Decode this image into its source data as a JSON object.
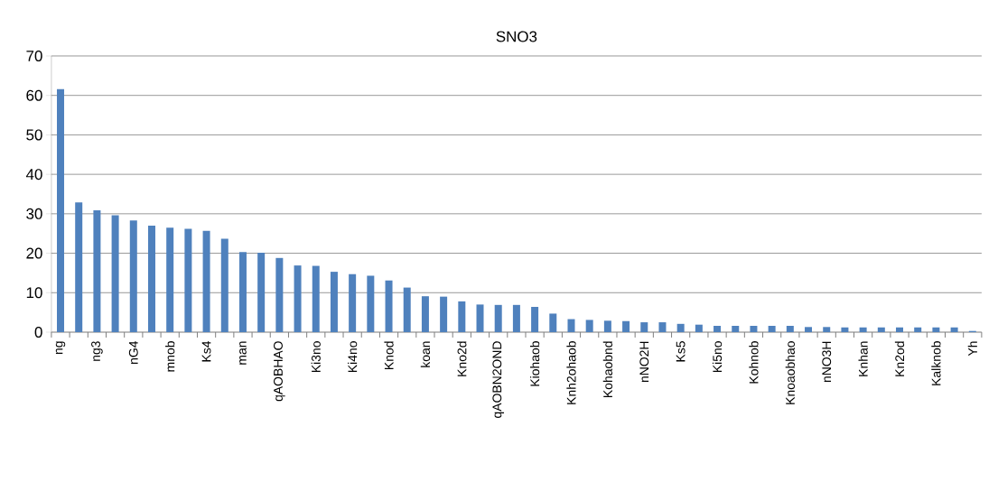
{
  "chart_data": {
    "type": "bar",
    "title": "SNO3",
    "categories": [
      "ng",
      null,
      "ng3",
      null,
      "nG4",
      null,
      "mnob",
      null,
      "Ks4",
      null,
      "man",
      null,
      "qAOBHAO",
      null,
      "Ki3no",
      null,
      "Ki4no",
      null,
      "Knod",
      null,
      "koan",
      null,
      "Kno2d",
      null,
      "qAOBN2OND",
      null,
      "Kiohaob",
      null,
      "Knh2ohaob",
      null,
      "Kohaobnd",
      null,
      "nNO2H",
      null,
      "Ks5",
      null,
      "Ki5no",
      null,
      "Kohnob",
      null,
      "Knoaobhao",
      null,
      "nNO3H",
      null,
      "Knhan",
      null,
      "Kn2od",
      null,
      "Kalknob",
      null,
      "Yh"
    ],
    "values": [
      61.6,
      32.9,
      30.9,
      29.6,
      28.3,
      27.0,
      26.5,
      26.2,
      25.7,
      23.7,
      20.3,
      20.1,
      18.8,
      16.9,
      16.8,
      15.3,
      14.7,
      14.3,
      13.1,
      11.3,
      9.1,
      9.0,
      7.8,
      7.0,
      6.9,
      6.9,
      6.4,
      4.7,
      3.3,
      3.1,
      2.9,
      2.8,
      2.5,
      2.5,
      2.1,
      1.9,
      1.6,
      1.6,
      1.6,
      1.6,
      1.6,
      1.3,
      1.3,
      1.2,
      1.2,
      1.2,
      1.2,
      1.2,
      1.2,
      1.2,
      0.3
    ],
    "color": "#4f81bd",
    "ylim": [
      0,
      70
    ],
    "yticks": [
      0,
      10,
      20,
      30,
      40,
      50,
      60,
      70
    ],
    "grid": "y"
  }
}
